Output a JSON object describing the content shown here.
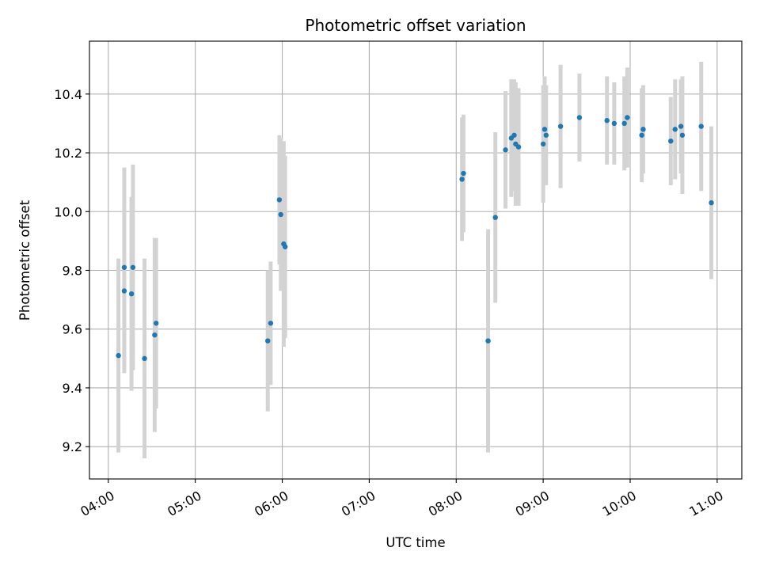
{
  "chart_data": {
    "type": "scatter",
    "title": "Photometric offset variation",
    "xlabel": "UTC time",
    "ylabel": "Photometric offset",
    "x_tick_labels": [
      "04:00",
      "05:00",
      "06:00",
      "07:00",
      "08:00",
      "09:00",
      "10:00",
      "11:00"
    ],
    "x_ticks": [
      "04:00",
      "05:00",
      "06:00",
      "07:00",
      "08:00",
      "09:00",
      "10:00",
      "11:00"
    ],
    "y_ticks": [
      9.2,
      9.4,
      9.6,
      9.8,
      10.0,
      10.2,
      10.4
    ],
    "y_tick_labels": [
      "9.2",
      "9.4",
      "9.6",
      "9.8",
      "10.0",
      "10.2",
      "10.4"
    ],
    "xlim": [
      "03:47",
      "11:17"
    ],
    "ylim": [
      9.09,
      10.58
    ],
    "grid": true,
    "colors": {
      "points": "#1f77b4",
      "errorbars": "#d3d3d3",
      "grid": "#b0b0b0"
    },
    "points": [
      {
        "x": "04:07",
        "y": 9.51,
        "err": 0.33
      },
      {
        "x": "04:11",
        "y": 9.81,
        "err": 0.34
      },
      {
        "x": "04:11",
        "y": 9.73,
        "err": 0.28
      },
      {
        "x": "04:16",
        "y": 9.72,
        "err": 0.33
      },
      {
        "x": "04:17",
        "y": 9.81,
        "err": 0.35
      },
      {
        "x": "04:25",
        "y": 9.5,
        "err": 0.34
      },
      {
        "x": "04:32",
        "y": 9.58,
        "err": 0.33
      },
      {
        "x": "04:33",
        "y": 9.62,
        "err": 0.29
      },
      {
        "x": "05:50",
        "y": 9.56,
        "err": 0.24
      },
      {
        "x": "05:52",
        "y": 9.62,
        "err": 0.21
      },
      {
        "x": "05:58",
        "y": 10.04,
        "err": 0.22
      },
      {
        "x": "05:59",
        "y": 9.99,
        "err": 0.26
      },
      {
        "x": "06:01",
        "y": 9.89,
        "err": 0.35
      },
      {
        "x": "06:02",
        "y": 9.88,
        "err": 0.31
      },
      {
        "x": "08:04",
        "y": 10.11,
        "err": 0.21
      },
      {
        "x": "08:05",
        "y": 10.13,
        "err": 0.2
      },
      {
        "x": "08:22",
        "y": 9.56,
        "err": 0.38
      },
      {
        "x": "08:27",
        "y": 9.98,
        "err": 0.29
      },
      {
        "x": "08:34",
        "y": 10.21,
        "err": 0.2
      },
      {
        "x": "08:38",
        "y": 10.25,
        "err": 0.2
      },
      {
        "x": "08:40",
        "y": 10.26,
        "err": 0.19
      },
      {
        "x": "08:41",
        "y": 10.23,
        "err": 0.21
      },
      {
        "x": "08:43",
        "y": 10.22,
        "err": 0.2
      },
      {
        "x": "09:00",
        "y": 10.23,
        "err": 0.2
      },
      {
        "x": "09:01",
        "y": 10.28,
        "err": 0.18
      },
      {
        "x": "09:02",
        "y": 10.26,
        "err": 0.17
      },
      {
        "x": "09:12",
        "y": 10.29,
        "err": 0.21
      },
      {
        "x": "09:25",
        "y": 10.32,
        "err": 0.15
      },
      {
        "x": "09:44",
        "y": 10.31,
        "err": 0.15
      },
      {
        "x": "09:49",
        "y": 10.3,
        "err": 0.14
      },
      {
        "x": "09:56",
        "y": 10.3,
        "err": 0.16
      },
      {
        "x": "09:58",
        "y": 10.32,
        "err": 0.17
      },
      {
        "x": "10:08",
        "y": 10.26,
        "err": 0.16
      },
      {
        "x": "10:09",
        "y": 10.28,
        "err": 0.15
      },
      {
        "x": "10:28",
        "y": 10.24,
        "err": 0.15
      },
      {
        "x": "10:31",
        "y": 10.28,
        "err": 0.17
      },
      {
        "x": "10:35",
        "y": 10.29,
        "err": 0.16
      },
      {
        "x": "10:36",
        "y": 10.26,
        "err": 0.2
      },
      {
        "x": "10:49",
        "y": 10.29,
        "err": 0.22
      },
      {
        "x": "10:56",
        "y": 10.03,
        "err": 0.26
      }
    ]
  }
}
